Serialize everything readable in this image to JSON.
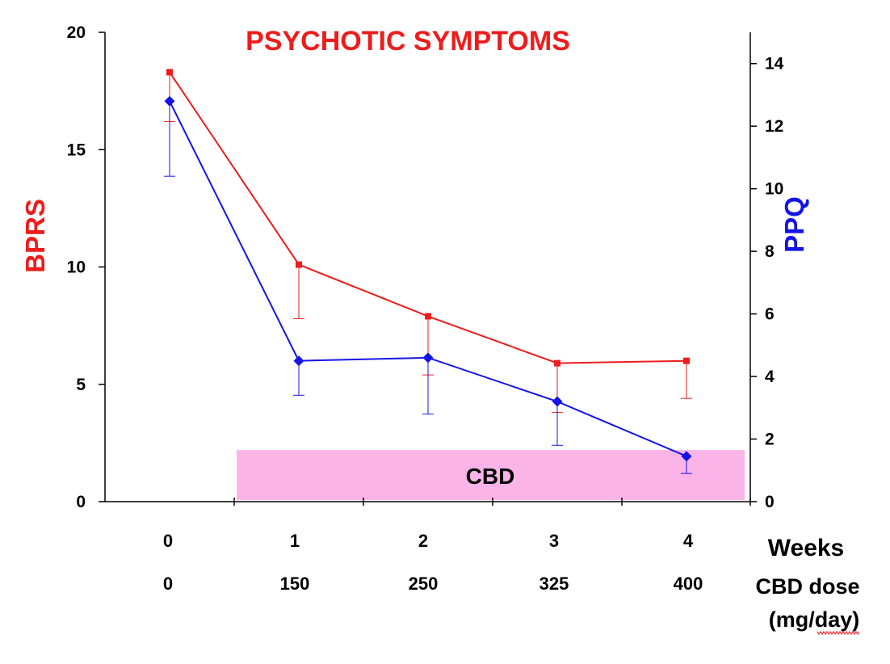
{
  "chart_data": {
    "type": "line",
    "title": "PSYCHOTIC SYMPTOMS",
    "ylabel": "BPRS",
    "y2label": "PPQ",
    "xlabel": "Weeks",
    "x2label_line1": "CBD dose",
    "x2label_line2": "(mg/day)",
    "categories": [
      "0",
      "1",
      "2",
      "3",
      "4"
    ],
    "dose_labels": [
      "0",
      "150",
      "250",
      "325",
      "400"
    ],
    "ylim": [
      0,
      20
    ],
    "y_ticks": [
      "0",
      "5",
      "10",
      "15",
      "20"
    ],
    "y2lim": [
      0,
      15
    ],
    "y2_ticks": [
      "0",
      "2",
      "4",
      "6",
      "8",
      "10",
      "12",
      "14"
    ],
    "grid": false,
    "legend": "none",
    "band_label": "CBD",
    "band_range_weeks": [
      0.5,
      4.45
    ],
    "band_top_ppq": 1.65,
    "series": [
      {
        "axis": "left",
        "color": "#ee1c1c",
        "marker": "square",
        "values": [
          18.3,
          10.1,
          7.9,
          5.9,
          6.0
        ],
        "error_low": [
          16.2,
          7.8,
          5.4,
          3.8,
          4.4
        ]
      },
      {
        "axis": "right",
        "color": "#1414e6",
        "marker": "diamond",
        "values": [
          12.8,
          4.5,
          4.6,
          3.2,
          1.45
        ],
        "error_low": [
          10.4,
          3.4,
          2.8,
          1.8,
          0.9
        ]
      }
    ],
    "colors": {
      "band": "#fbb4e8",
      "axis": "#000000",
      "title": "#ee1c1c",
      "ylabel": "#ee1c1c",
      "y2label": "#1414e6"
    }
  }
}
